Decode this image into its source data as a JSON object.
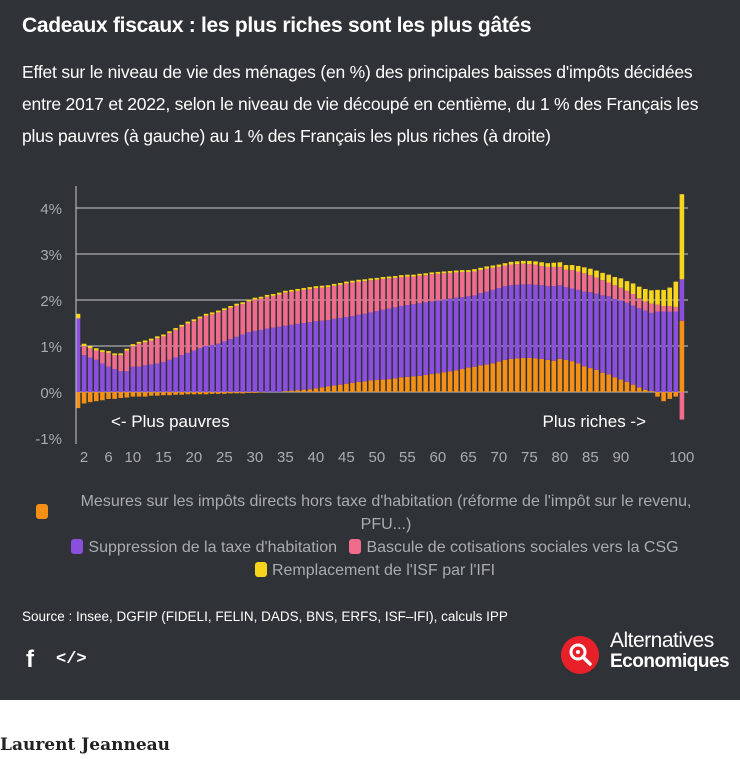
{
  "header": {
    "title": "Cadeaux fiscaux : les plus riches sont les plus gâtés",
    "subtitle": "Effet sur le niveau de vie des ménages (en %) des principales baisses d'impôts décidées entre 2017 et 2022, selon le niveau de vie découpé en centième, du 1 % des Français les plus pauvres (à gauche) au 1 % des Français les plus riches (à droite)"
  },
  "chart_data": {
    "type": "bar",
    "stacked": true,
    "x": [
      1,
      2,
      3,
      4,
      5,
      6,
      7,
      8,
      9,
      10,
      11,
      12,
      13,
      14,
      15,
      16,
      17,
      18,
      19,
      20,
      21,
      22,
      23,
      24,
      25,
      26,
      27,
      28,
      29,
      30,
      31,
      32,
      33,
      34,
      35,
      36,
      37,
      38,
      39,
      40,
      41,
      42,
      43,
      44,
      45,
      46,
      47,
      48,
      49,
      50,
      51,
      52,
      53,
      54,
      55,
      56,
      57,
      58,
      59,
      60,
      61,
      62,
      63,
      64,
      65,
      66,
      67,
      68,
      69,
      70,
      71,
      72,
      73,
      74,
      75,
      76,
      77,
      78,
      79,
      80,
      81,
      82,
      83,
      84,
      85,
      86,
      87,
      88,
      89,
      90,
      91,
      92,
      93,
      94,
      95,
      96,
      97,
      98,
      99,
      100
    ],
    "xticks": [
      "2",
      "6",
      "10",
      "15",
      "20",
      "25",
      "30",
      "35",
      "40",
      "45",
      "50",
      "55",
      "60",
      "65",
      "70",
      "75",
      "80",
      "85",
      "90",
      "100"
    ],
    "yticks": [
      "-1%",
      "0%",
      "1%",
      "2%",
      "3%",
      "4%"
    ],
    "ylim": [
      -1,
      4.5
    ],
    "series": [
      {
        "name": "Mesures sur les impôts directs hors taxe d'habitation (réforme de l'impôt sur le revenu, PFU...)",
        "color": "#f39015",
        "values": [
          -0.35,
          -0.25,
          -0.22,
          -0.2,
          -0.18,
          -0.15,
          -0.15,
          -0.13,
          -0.12,
          -0.1,
          -0.1,
          -0.1,
          -0.08,
          -0.08,
          -0.07,
          -0.07,
          -0.06,
          -0.06,
          -0.05,
          -0.05,
          -0.05,
          -0.05,
          -0.04,
          -0.04,
          -0.04,
          -0.03,
          -0.03,
          -0.03,
          -0.02,
          -0.02,
          -0.01,
          0,
          0,
          0,
          0.02,
          0.03,
          0.04,
          0.05,
          0.06,
          0.08,
          0.1,
          0.12,
          0.14,
          0.16,
          0.18,
          0.2,
          0.22,
          0.23,
          0.25,
          0.26,
          0.27,
          0.28,
          0.3,
          0.32,
          0.33,
          0.34,
          0.35,
          0.37,
          0.39,
          0.41,
          0.43,
          0.45,
          0.47,
          0.5,
          0.53,
          0.55,
          0.58,
          0.6,
          0.62,
          0.66,
          0.7,
          0.72,
          0.73,
          0.74,
          0.74,
          0.73,
          0.72,
          0.7,
          0.68,
          0.72,
          0.7,
          0.67,
          0.62,
          0.56,
          0.52,
          0.48,
          0.42,
          0.38,
          0.32,
          0.27,
          0.22,
          0.16,
          0.1,
          0.05,
          0.02,
          -0.1,
          -0.2,
          -0.15,
          -0.1,
          1.55
        ]
      },
      {
        "name": "Suppression de la taxe d'habitation",
        "color": "#8a4fdc",
        "values": [
          1.6,
          0.8,
          0.75,
          0.7,
          0.62,
          0.55,
          0.5,
          0.45,
          0.45,
          0.55,
          0.55,
          0.58,
          0.6,
          0.62,
          0.65,
          0.7,
          0.75,
          0.8,
          0.85,
          0.9,
          0.95,
          1.0,
          1.02,
          1.05,
          1.1,
          1.15,
          1.2,
          1.25,
          1.3,
          1.33,
          1.35,
          1.38,
          1.4,
          1.42,
          1.42,
          1.43,
          1.44,
          1.45,
          1.46,
          1.46,
          1.45,
          1.44,
          1.45,
          1.45,
          1.45,
          1.45,
          1.46,
          1.47,
          1.48,
          1.5,
          1.52,
          1.53,
          1.54,
          1.55,
          1.56,
          1.57,
          1.58,
          1.58,
          1.58,
          1.58,
          1.58,
          1.58,
          1.58,
          1.56,
          1.55,
          1.55,
          1.57,
          1.58,
          1.6,
          1.6,
          1.6,
          1.6,
          1.6,
          1.6,
          1.6,
          1.6,
          1.6,
          1.6,
          1.62,
          1.6,
          1.58,
          1.58,
          1.6,
          1.62,
          1.65,
          1.66,
          1.68,
          1.7,
          1.7,
          1.72,
          1.72,
          1.72,
          1.72,
          1.72,
          1.7,
          1.75,
          1.75,
          1.75,
          1.75,
          0.9
        ]
      },
      {
        "name": "Bascule de cotisations sociales vers la CSG",
        "color": "#f06c8d",
        "values": [
          0,
          0.2,
          0.2,
          0.2,
          0.25,
          0.3,
          0.3,
          0.35,
          0.45,
          0.45,
          0.5,
          0.5,
          0.52,
          0.55,
          0.56,
          0.58,
          0.6,
          0.62,
          0.64,
          0.64,
          0.65,
          0.66,
          0.67,
          0.68,
          0.68,
          0.68,
          0.68,
          0.66,
          0.67,
          0.68,
          0.68,
          0.69,
          0.69,
          0.7,
          0.72,
          0.72,
          0.72,
          0.72,
          0.72,
          0.72,
          0.72,
          0.72,
          0.72,
          0.72,
          0.73,
          0.73,
          0.72,
          0.71,
          0.7,
          0.68,
          0.67,
          0.66,
          0.64,
          0.63,
          0.62,
          0.6,
          0.6,
          0.59,
          0.59,
          0.58,
          0.57,
          0.56,
          0.55,
          0.55,
          0.53,
          0.52,
          0.5,
          0.5,
          0.48,
          0.46,
          0.45,
          0.45,
          0.45,
          0.45,
          0.44,
          0.44,
          0.42,
          0.42,
          0.42,
          0.4,
          0.38,
          0.4,
          0.4,
          0.4,
          0.37,
          0.35,
          0.33,
          0.3,
          0.3,
          0.28,
          0.26,
          0.25,
          0.22,
          0.2,
          0.2,
          0.15,
          0.12,
          0.12,
          0.1,
          -0.6
        ]
      },
      {
        "name": "Remplacement de l'ISF par l'IFI",
        "color": "#f7d51c",
        "values": [
          0.1,
          0.05,
          0.05,
          0.05,
          0.04,
          0.04,
          0.04,
          0.04,
          0.04,
          0.04,
          0.04,
          0.04,
          0.04,
          0.04,
          0.04,
          0.04,
          0.04,
          0.04,
          0.04,
          0.04,
          0.04,
          0.04,
          0.04,
          0.04,
          0.04,
          0.04,
          0.04,
          0.04,
          0.04,
          0.04,
          0.04,
          0.04,
          0.04,
          0.04,
          0.04,
          0.04,
          0.04,
          0.04,
          0.04,
          0.04,
          0.04,
          0.04,
          0.04,
          0.04,
          0.04,
          0.04,
          0.04,
          0.04,
          0.04,
          0.04,
          0.04,
          0.04,
          0.04,
          0.04,
          0.04,
          0.04,
          0.04,
          0.04,
          0.04,
          0.04,
          0.04,
          0.04,
          0.04,
          0.04,
          0.04,
          0.05,
          0.05,
          0.05,
          0.05,
          0.05,
          0.05,
          0.06,
          0.06,
          0.06,
          0.07,
          0.07,
          0.08,
          0.08,
          0.09,
          0.1,
          0.1,
          0.11,
          0.12,
          0.13,
          0.14,
          0.15,
          0.16,
          0.17,
          0.18,
          0.2,
          0.21,
          0.23,
          0.25,
          0.27,
          0.29,
          0.32,
          0.35,
          0.4,
          0.55,
          1.85
        ]
      }
    ],
    "annotations": {
      "left": "<- Plus pauvres",
      "right": "Plus riches ->"
    },
    "grid": true
  },
  "legend": {
    "items": [
      {
        "label": "Mesures sur les impôts directs hors taxe d'habitation (réforme de l'impôt sur le revenu, PFU...)",
        "color": "#f39015"
      },
      {
        "label": "Suppression de la taxe d'habitation",
        "color": "#8a4fdc"
      },
      {
        "label": "Bascule de cotisations sociales vers la CSG",
        "color": "#f06c8d"
      },
      {
        "label": "Remplacement de l'ISF par l'IFI",
        "color": "#f7d51c"
      }
    ]
  },
  "footer": {
    "source": "Source : Insee, DGFIP (FIDELI, FELIN, DADS, BNS, ERFS, ISF–IFI), calculs IPP",
    "facebook_glyph": "f",
    "embed_glyph": "</>",
    "brand_line1": "Alternatives",
    "brand_line2": "Economiques"
  },
  "byline": {
    "author": "Laurent Jeanneau"
  }
}
